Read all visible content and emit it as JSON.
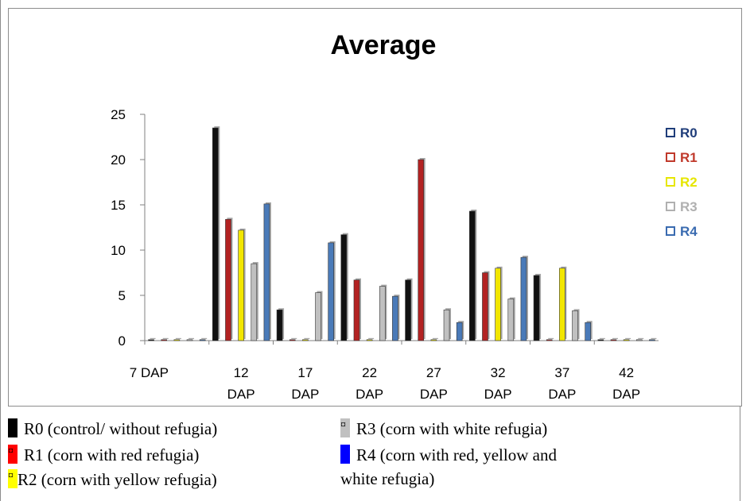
{
  "chart_data": {
    "type": "bar",
    "title": "Average",
    "categories": [
      "7 DAP",
      "12 DAP",
      "17 DAP",
      "22 DAP",
      "27 DAP",
      "32 DAP",
      "37 DAP",
      "42 DAP"
    ],
    "category_lines": [
      [
        "7 DAP"
      ],
      [
        "12",
        "DAP"
      ],
      [
        "17",
        "DAP"
      ],
      [
        "22",
        "DAP"
      ],
      [
        "27",
        "DAP"
      ],
      [
        "32",
        "DAP"
      ],
      [
        "37",
        "DAP"
      ],
      [
        "42",
        "DAP"
      ]
    ],
    "ylim": [
      0,
      25
    ],
    "yticks": [
      0,
      5,
      10,
      15,
      20,
      25
    ],
    "grid": false,
    "legend_position": "right",
    "series": [
      {
        "name": "R0",
        "color": "#111111",
        "legend_color": "#1f3d7a",
        "values": [
          0,
          23.5,
          3.4,
          11.7,
          6.7,
          14.3,
          7.2,
          0
        ]
      },
      {
        "name": "R1",
        "color": "#b22222",
        "legend_color": "#c0392b",
        "values": [
          0,
          13.4,
          0,
          6.7,
          20.0,
          7.5,
          0,
          0
        ]
      },
      {
        "name": "R2",
        "color": "#f2e600",
        "legend_color": "#e6e600",
        "values": [
          0,
          12.2,
          0,
          0,
          0,
          8.0,
          8.0,
          0
        ]
      },
      {
        "name": "R3",
        "color": "#c0c0c0",
        "legend_color": "#b0b0b0",
        "values": [
          0,
          8.5,
          5.3,
          6.0,
          3.4,
          4.6,
          3.3,
          0
        ]
      },
      {
        "name": "R4",
        "color": "#4a7ab8",
        "legend_color": "#3a6bb0",
        "values": [
          0,
          15.1,
          10.8,
          4.9,
          2.0,
          9.2,
          2.0,
          0
        ]
      }
    ]
  },
  "notes": [
    {
      "label": "R0 (control/ without refugia)",
      "color": "#000000",
      "mark": ""
    },
    {
      "label": "R1 (corn with red refugia)",
      "color": "#ff0000",
      "mark": "¤"
    },
    {
      "label": "R2 (corn with yellow refugia)",
      "color": "#ffff00",
      "mark": "¤"
    },
    {
      "label": "R3 (corn with white refugia)",
      "color": "#c0c0c0",
      "mark": "¤"
    },
    {
      "label": "R4 (corn with red, yellow and",
      "label2": "white refugia)",
      "color": "#0000ff",
      "mark": ""
    }
  ]
}
